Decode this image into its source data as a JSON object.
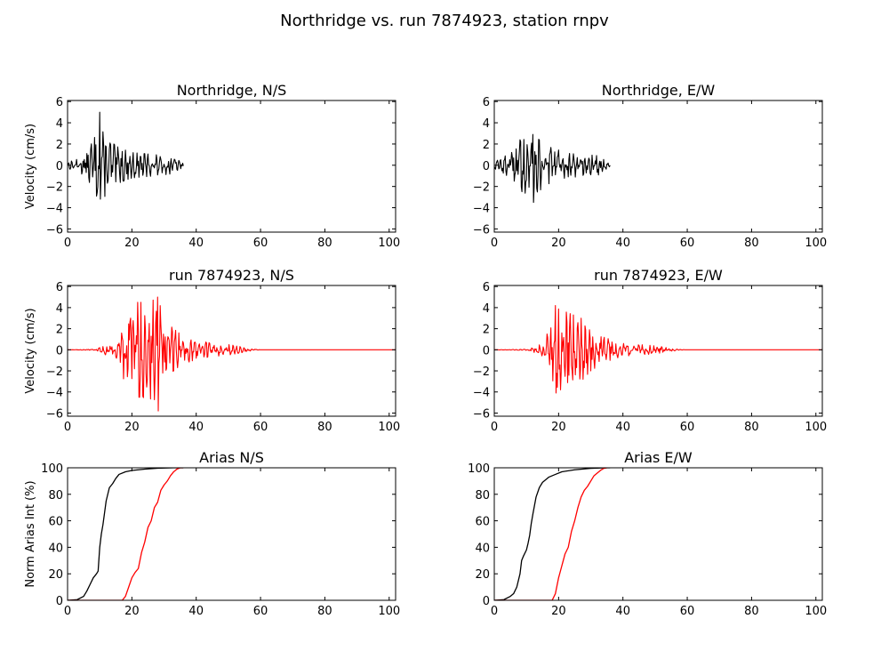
{
  "figure": {
    "suptitle": "Northridge vs. run 7874923, station rnpv"
  },
  "colors": {
    "recorded": "#000000",
    "simulated": "#ff0000",
    "axes": "#000000",
    "background": "#ffffff"
  },
  "chart_data": [
    {
      "id": "ns-recorded",
      "type": "line",
      "title": "Northridge, N/S",
      "xlabel": "",
      "ylabel": "Velocity (cm/s)",
      "xlim": [
        0,
        102
      ],
      "ylim": [
        -6.3,
        6.1
      ],
      "xticks": [
        0,
        20,
        40,
        60,
        80,
        100
      ],
      "yticks": [
        -6,
        -4,
        -2,
        0,
        2,
        4,
        6
      ],
      "grid": false,
      "series": [
        {
          "color": "#000000",
          "kind": "waveform",
          "x_start": 0.0,
          "x_end": 36.0,
          "dt": 0.2,
          "peak_pos": 5.0,
          "peak_neg": -3.2,
          "envelope": [
            [
              0.0,
              0.3
            ],
            [
              3.0,
              0.6
            ],
            [
              6.0,
              1.1
            ],
            [
              8.0,
              2.4
            ],
            [
              10.0,
              3.5
            ],
            [
              12.0,
              2.8
            ],
            [
              15.0,
              1.8
            ],
            [
              20.0,
              1.2
            ],
            [
              27.0,
              1.0
            ],
            [
              33.0,
              0.8
            ],
            [
              36.0,
              0.15
            ]
          ]
        }
      ]
    },
    {
      "id": "ew-recorded",
      "type": "line",
      "title": "Northridge, E/W",
      "xlabel": "",
      "ylabel": "",
      "xlim": [
        0,
        102
      ],
      "ylim": [
        -6.3,
        6.1
      ],
      "xticks": [
        0,
        20,
        40,
        60,
        80,
        100
      ],
      "yticks": [
        -6,
        -4,
        -2,
        0,
        2,
        4,
        6
      ],
      "grid": false,
      "series": [
        {
          "color": "#000000",
          "kind": "waveform",
          "x_start": 0.0,
          "x_end": 36.0,
          "dt": 0.2,
          "peak_pos": 2.9,
          "peak_neg": -3.5,
          "envelope": [
            [
              0.0,
              0.3
            ],
            [
              3.0,
              0.8
            ],
            [
              6.0,
              1.4
            ],
            [
              8.0,
              2.4
            ],
            [
              10.0,
              2.7
            ],
            [
              12.0,
              2.8
            ],
            [
              15.0,
              2.2
            ],
            [
              18.0,
              1.6
            ],
            [
              24.0,
              1.2
            ],
            [
              32.0,
              1.0
            ],
            [
              36.0,
              0.1
            ]
          ]
        }
      ]
    },
    {
      "id": "ns-simulated",
      "type": "line",
      "title": "run 7874923, N/S",
      "xlabel": "",
      "ylabel": "Velocity (cm/s)",
      "xlim": [
        0,
        102
      ],
      "ylim": [
        -6.3,
        6.1
      ],
      "xticks": [
        0,
        20,
        40,
        60,
        80,
        100
      ],
      "yticks": [
        -6,
        -4,
        -2,
        0,
        2,
        4,
        6
      ],
      "grid": false,
      "series": [
        {
          "color": "#ff0000",
          "kind": "waveform",
          "x_start": 0.0,
          "x_end": 102.0,
          "dt": 0.2,
          "peak_pos": 5.0,
          "peak_neg": -5.8,
          "envelope": [
            [
              0.0,
              0.0
            ],
            [
              9.0,
              0.05
            ],
            [
              12.0,
              0.5
            ],
            [
              15.0,
              0.7
            ],
            [
              17.0,
              2.5
            ],
            [
              20.0,
              4.5
            ],
            [
              23.0,
              4.5
            ],
            [
              28.0,
              4.8
            ],
            [
              31.0,
              2.5
            ],
            [
              35.0,
              1.5
            ],
            [
              40.0,
              0.9
            ],
            [
              46.0,
              0.7
            ],
            [
              52.0,
              0.4
            ],
            [
              57.0,
              0.1
            ],
            [
              60.0,
              0.0
            ],
            [
              102.0,
              0.0
            ]
          ]
        }
      ]
    },
    {
      "id": "ew-simulated",
      "type": "line",
      "title": "run 7874923, E/W",
      "xlabel": "",
      "ylabel": "",
      "xlim": [
        0,
        102
      ],
      "ylim": [
        -6.3,
        6.1
      ],
      "xticks": [
        0,
        20,
        40,
        60,
        80,
        100
      ],
      "yticks": [
        -6,
        -4,
        -2,
        0,
        2,
        4,
        6
      ],
      "grid": false,
      "series": [
        {
          "color": "#ff0000",
          "kind": "waveform",
          "x_start": 0.0,
          "x_end": 102.0,
          "dt": 0.2,
          "peak_pos": 4.2,
          "peak_neg": -4.1,
          "envelope": [
            [
              0.0,
              0.0
            ],
            [
              10.0,
              0.05
            ],
            [
              12.0,
              0.2
            ],
            [
              15.0,
              0.6
            ],
            [
              17.0,
              2.5
            ],
            [
              19.0,
              4.0
            ],
            [
              23.0,
              3.5
            ],
            [
              27.0,
              3.0
            ],
            [
              30.0,
              2.0
            ],
            [
              34.0,
              1.2
            ],
            [
              40.0,
              0.6
            ],
            [
              46.0,
              0.5
            ],
            [
              52.0,
              0.3
            ],
            [
              57.0,
              0.05
            ],
            [
              60.0,
              0.0
            ],
            [
              102.0,
              0.0
            ]
          ]
        }
      ]
    },
    {
      "id": "arias-ns",
      "type": "line",
      "title": "Arias N/S",
      "xlabel": "",
      "ylabel": "Norm Arias Int (%)",
      "xlim": [
        0,
        102
      ],
      "ylim": [
        0,
        100
      ],
      "xticks": [
        0,
        20,
        40,
        60,
        80,
        100
      ],
      "yticks": [
        0,
        20,
        40,
        60,
        80,
        100
      ],
      "grid": false,
      "series": [
        {
          "color": "#000000",
          "kind": "curve",
          "points": [
            [
              0,
              0
            ],
            [
              3,
              0.5
            ],
            [
              5,
              3
            ],
            [
              6,
              7
            ],
            [
              7,
              12
            ],
            [
              8,
              17
            ],
            [
              9,
              20
            ],
            [
              9.5,
              22
            ],
            [
              10,
              40
            ],
            [
              10.5,
              50
            ],
            [
              11,
              57
            ],
            [
              11.5,
              66
            ],
            [
              12,
              75
            ],
            [
              13,
              85
            ],
            [
              14,
              88
            ],
            [
              15,
              92
            ],
            [
              16,
              95
            ],
            [
              18,
              97
            ],
            [
              20,
              98
            ],
            [
              24,
              99
            ],
            [
              28,
              99.7
            ],
            [
              33,
              100
            ],
            [
              36,
              100
            ]
          ]
        },
        {
          "color": "#ff0000",
          "kind": "curve",
          "points": [
            [
              0,
              0
            ],
            [
              17,
              0
            ],
            [
              18,
              3
            ],
            [
              19,
              10
            ],
            [
              20,
              17
            ],
            [
              21,
              21
            ],
            [
              22,
              24
            ],
            [
              23,
              36
            ],
            [
              24,
              44
            ],
            [
              25,
              55
            ],
            [
              26,
              60
            ],
            [
              27,
              70
            ],
            [
              28,
              74
            ],
            [
              29,
              83
            ],
            [
              30,
              87
            ],
            [
              31,
              90
            ],
            [
              32,
              94
            ],
            [
              33,
              97
            ],
            [
              34,
              99
            ],
            [
              35,
              100
            ],
            [
              36,
              100
            ]
          ]
        }
      ]
    },
    {
      "id": "arias-ew",
      "type": "line",
      "title": "Arias E/W",
      "xlabel": "",
      "ylabel": "",
      "xlim": [
        0,
        102
      ],
      "ylim": [
        0,
        100
      ],
      "xticks": [
        0,
        20,
        40,
        60,
        80,
        100
      ],
      "yticks": [
        0,
        20,
        40,
        60,
        80,
        100
      ],
      "grid": false,
      "series": [
        {
          "color": "#000000",
          "kind": "curve",
          "points": [
            [
              0,
              0
            ],
            [
              3,
              0.5
            ],
            [
              5,
              3
            ],
            [
              6,
              5
            ],
            [
              7,
              10
            ],
            [
              8,
              20
            ],
            [
              8.5,
              30
            ],
            [
              9,
              33
            ],
            [
              10,
              38
            ],
            [
              10.5,
              43
            ],
            [
              11,
              49
            ],
            [
              11.5,
              58
            ],
            [
              12,
              65
            ],
            [
              13,
              78
            ],
            [
              14,
              85
            ],
            [
              15,
              89
            ],
            [
              16,
              91
            ],
            [
              17,
              93
            ],
            [
              19,
              95
            ],
            [
              21,
              97
            ],
            [
              25,
              98.5
            ],
            [
              30,
              99.6
            ],
            [
              35,
              100
            ],
            [
              36,
              100
            ]
          ]
        },
        {
          "color": "#ff0000",
          "kind": "curve",
          "points": [
            [
              0,
              0
            ],
            [
              18,
              0
            ],
            [
              19,
              5
            ],
            [
              20,
              17
            ],
            [
              21,
              26
            ],
            [
              22,
              35
            ],
            [
              23,
              40
            ],
            [
              24,
              52
            ],
            [
              25,
              60
            ],
            [
              26,
              70
            ],
            [
              27,
              78
            ],
            [
              28,
              83
            ],
            [
              29,
              86
            ],
            [
              30,
              90
            ],
            [
              31,
              94
            ],
            [
              32,
              96
            ],
            [
              33,
              98
            ],
            [
              34,
              99.5
            ],
            [
              35,
              100
            ]
          ]
        }
      ]
    }
  ]
}
